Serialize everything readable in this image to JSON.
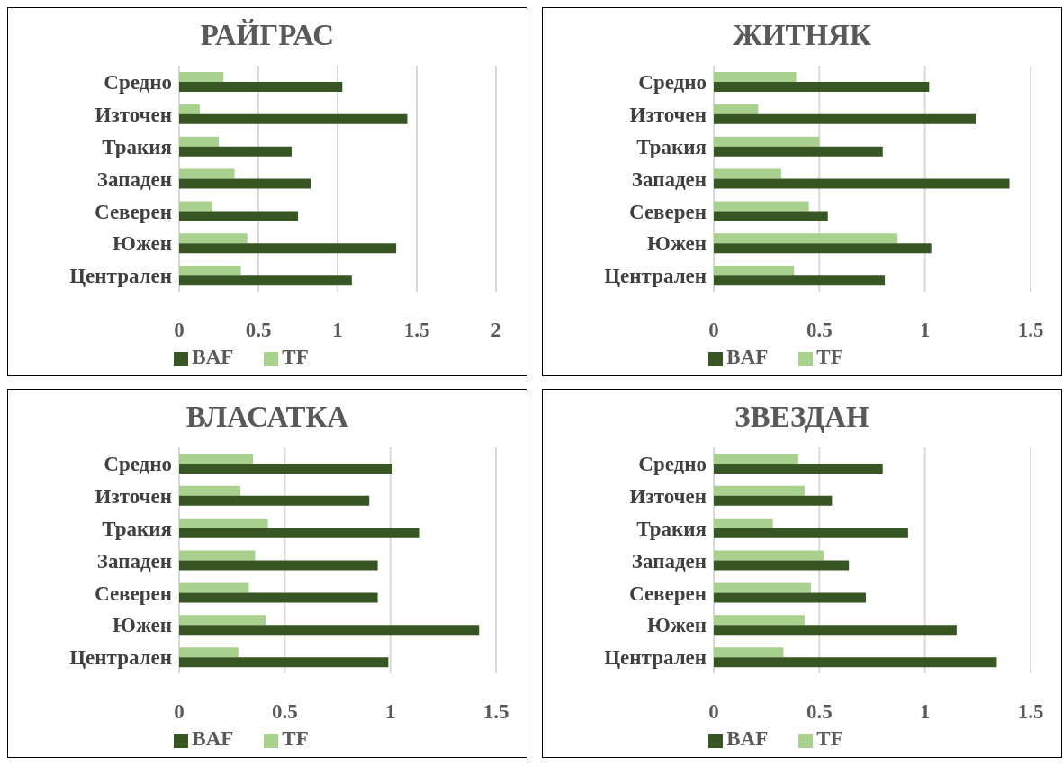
{
  "chart_data": [
    {
      "type": "bar",
      "title": "РАЙГРАС",
      "orientation": "horizontal",
      "categories": [
        "Средно",
        "Източен",
        "Тракия",
        "Западен",
        "Северен",
        "Южен",
        "Централен"
      ],
      "series": [
        {
          "name": "TF",
          "color": "#a9d18e",
          "values": [
            0.28,
            0.13,
            0.25,
            0.35,
            0.21,
            0.43,
            0.39
          ]
        },
        {
          "name": "BAF",
          "color": "#375623",
          "values": [
            1.03,
            1.44,
            0.71,
            0.83,
            0.75,
            1.37,
            1.09
          ]
        }
      ],
      "xlim": [
        0,
        2
      ],
      "xticks": [
        0,
        0.5,
        1,
        1.5,
        2
      ],
      "grid": "x",
      "legend": "bottom"
    },
    {
      "type": "bar",
      "title": "ЖИТНЯК",
      "orientation": "horizontal",
      "categories": [
        "Средно",
        "Източен",
        "Тракия",
        "Западен",
        "Северен",
        "Южен",
        "Централен"
      ],
      "series": [
        {
          "name": "TF",
          "color": "#a9d18e",
          "values": [
            0.39,
            0.21,
            0.5,
            0.32,
            0.45,
            0.87,
            0.38
          ]
        },
        {
          "name": "BAF",
          "color": "#375623",
          "values": [
            1.02,
            1.24,
            0.8,
            1.4,
            0.54,
            1.03,
            0.81
          ]
        }
      ],
      "xlim": [
        0,
        1.5
      ],
      "xticks": [
        0,
        0.5,
        1,
        1.5
      ],
      "grid": "x",
      "legend": "bottom"
    },
    {
      "type": "bar",
      "title": "ВЛАСАТКА",
      "orientation": "horizontal",
      "categories": [
        "Средно",
        "Източен",
        "Тракия",
        "Западен",
        "Северен",
        "Южен",
        "Централен"
      ],
      "series": [
        {
          "name": "TF",
          "color": "#a9d18e",
          "values": [
            0.35,
            0.29,
            0.42,
            0.36,
            0.33,
            0.41,
            0.28
          ]
        },
        {
          "name": "BAF",
          "color": "#375623",
          "values": [
            1.01,
            0.9,
            1.14,
            0.94,
            0.94,
            1.42,
            0.99
          ]
        }
      ],
      "xlim": [
        0,
        1.5
      ],
      "xticks": [
        0,
        0.5,
        1,
        1.5
      ],
      "grid": "x",
      "legend": "bottom"
    },
    {
      "type": "bar",
      "title": "ЗВЕЗДАН",
      "orientation": "horizontal",
      "categories": [
        "Средно",
        "Източен",
        "Тракия",
        "Западен",
        "Северен",
        "Южен",
        "Централен"
      ],
      "series": [
        {
          "name": "TF",
          "color": "#a9d18e",
          "values": [
            0.4,
            0.43,
            0.28,
            0.52,
            0.46,
            0.43,
            0.33
          ]
        },
        {
          "name": "BAF",
          "color": "#375623",
          "values": [
            0.8,
            0.56,
            0.92,
            0.64,
            0.72,
            1.15,
            1.34
          ]
        }
      ],
      "xlim": [
        0,
        1.5
      ],
      "xticks": [
        0,
        0.5,
        1,
        1.5
      ],
      "grid": "x",
      "legend": "bottom"
    }
  ]
}
